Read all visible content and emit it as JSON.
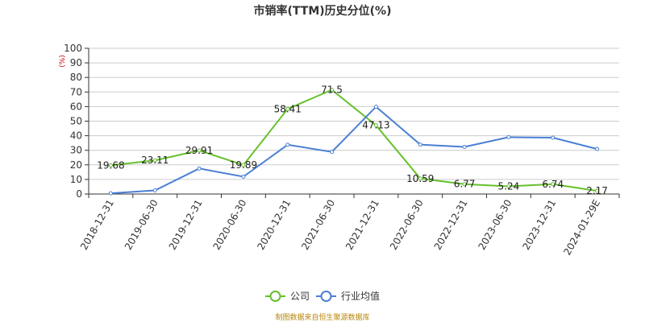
{
  "chart_data": {
    "type": "line",
    "title": "市销率(TTM)历史分位(%)",
    "unit": "(%)",
    "categories": [
      "2018-12-31",
      "2019-06-30",
      "2019-12-31",
      "2020-06-30",
      "2020-12-31",
      "2021-06-30",
      "2021-12-31",
      "2022-06-30",
      "2022-12-31",
      "2023-06-30",
      "2023-12-31",
      "2024-01-29E"
    ],
    "yticks": [
      "0",
      "10",
      "20",
      "30",
      "40",
      "50",
      "60",
      "70",
      "80",
      "90",
      "100"
    ],
    "ylim": [
      0,
      100
    ],
    "grid": true,
    "legend_position": "bottom-center",
    "series": [
      {
        "name": "公司",
        "color": "#66c02c",
        "values": [
          19.68,
          23.11,
          29.91,
          19.89,
          58.41,
          71.5,
          47.13,
          10.59,
          6.77,
          5.24,
          6.74,
          2.17
        ],
        "labels": [
          "19.68",
          "23.11",
          "29.91",
          "19.89",
          "58.41",
          "71.5",
          "47.13",
          "10.59",
          "6.77",
          "5.24",
          "6.74",
          "2.17"
        ]
      },
      {
        "name": "行业均值",
        "color": "#4a7fd4",
        "values": [
          0.5,
          2.5,
          17.5,
          11.9,
          33.8,
          28.9,
          59.9,
          33.9,
          32.3,
          39.0,
          38.7,
          30.9
        ]
      }
    ],
    "source": "制图数据来自恒生聚源数据库"
  }
}
